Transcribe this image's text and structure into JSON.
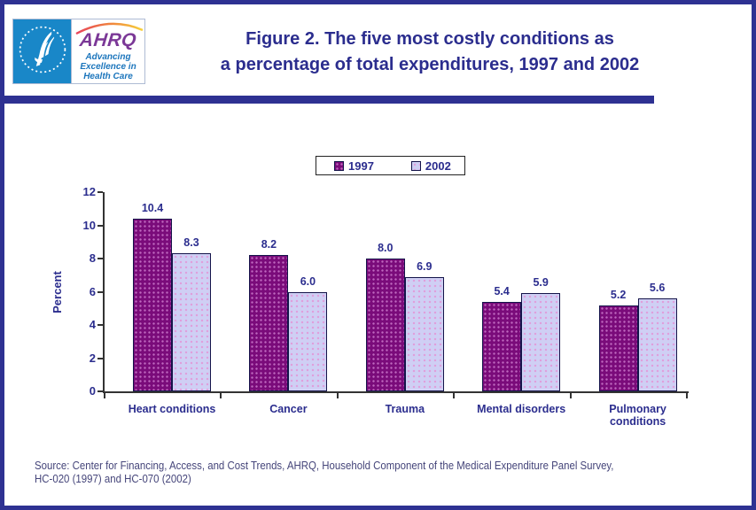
{
  "page": {
    "background": "#FFFFFF",
    "border_color": "#2E3192",
    "accent_navy": "#2B2D8E"
  },
  "header": {
    "ahrq_logo": {
      "name": "AHRQ",
      "tagline": [
        "Advancing",
        "Excellence in",
        "Health Care"
      ]
    },
    "title_line1": "Figure 2. The five most costly conditions as",
    "title_line2": "a percentage of total expenditures, 1997 and 2002"
  },
  "chart_data": {
    "type": "bar",
    "title": "Figure 2. The five most costly conditions as a percentage of total expenditures, 1997 and 2002",
    "categories": [
      "Heart conditions",
      "Cancer",
      "Trauma",
      "Mental disorders",
      "Pulmonary conditions"
    ],
    "series": [
      {
        "name": "1997",
        "color": "#7A0B7A",
        "values": [
          10.4,
          8.2,
          8.0,
          5.4,
          5.2
        ]
      },
      {
        "name": "2002",
        "color": "#CFCFF4",
        "values": [
          8.3,
          6.0,
          6.9,
          5.9,
          5.6
        ]
      }
    ],
    "xlabel": "",
    "ylabel": "Percent",
    "ylim": [
      0,
      12
    ],
    "yticks": [
      0,
      2,
      4,
      6,
      8,
      10,
      12
    ],
    "grid": false,
    "legend_position": "top-center",
    "value_labels": true
  },
  "source": {
    "line1": "Source: Center for Financing, Access, and Cost Trends, AHRQ, Household Component of the Medical Expenditure Panel Survey,",
    "line2": "HC-020 (1997) and HC-070 (2002)"
  }
}
